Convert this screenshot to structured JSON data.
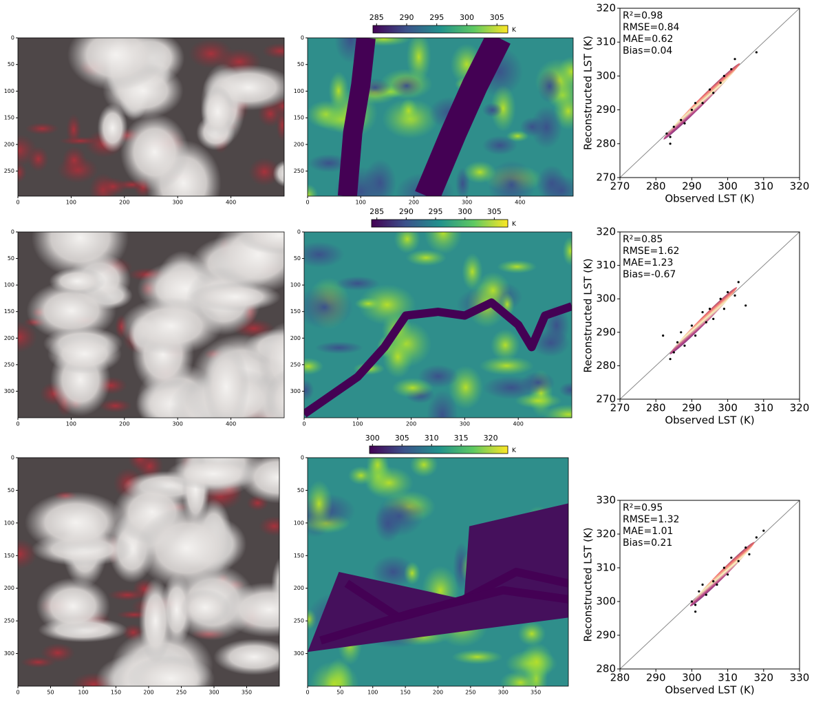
{
  "chart_data": [
    {
      "type": "image",
      "xlim": [
        0,
        500
      ],
      "ylim": [
        0,
        297
      ],
      "xticks": [
        0,
        100,
        200,
        300,
        400
      ],
      "yticks": [
        0,
        50,
        100,
        150,
        200,
        250
      ],
      "style": "rgb"
    },
    {
      "type": "image",
      "xlim": [
        0,
        500
      ],
      "ylim": [
        0,
        297
      ],
      "xticks": [
        0,
        100,
        200,
        300,
        400
      ],
      "yticks": [
        0,
        50,
        100,
        150,
        200,
        250
      ],
      "style": "lst",
      "colorbar": {
        "lim": [
          284.4,
          306.8
        ],
        "ticks": [
          285,
          290,
          295,
          300,
          305
        ],
        "label": "K"
      }
    },
    {
      "type": "scatter",
      "xlabel": "Observed LST (K)",
      "ylabel": "Reconstructed LST (K)",
      "xlim": [
        270,
        320
      ],
      "ylim": [
        270,
        320
      ],
      "xticks": [
        270,
        280,
        290,
        300,
        310,
        320
      ],
      "yticks": [
        270,
        280,
        290,
        300,
        310,
        320
      ],
      "color": "#000000",
      "annotations": [
        "R²=0.98",
        "RMSE=0.84",
        "MAE=0.62",
        "Bias=0.04"
      ],
      "x": [
        283,
        284,
        285,
        287,
        288,
        290,
        291,
        293,
        295,
        296,
        298,
        299,
        301,
        284,
        308,
        302
      ],
      "y": [
        283,
        282,
        285,
        287,
        286,
        290,
        292,
        292,
        296,
        295,
        298,
        300,
        302,
        280,
        307,
        305
      ]
    },
    {
      "type": "image",
      "xlim": [
        0,
        500
      ],
      "ylim": [
        0,
        350
      ],
      "xticks": [
        0,
        100,
        200,
        300,
        400
      ],
      "yticks": [
        0,
        50,
        100,
        150,
        200,
        250,
        300
      ],
      "style": "rgb"
    },
    {
      "type": "image",
      "xlim": [
        0,
        500
      ],
      "ylim": [
        0,
        350
      ],
      "xticks": [
        0,
        100,
        200,
        300,
        400
      ],
      "yticks": [
        0,
        50,
        100,
        150,
        200,
        250,
        300
      ],
      "style": "lst",
      "colorbar": {
        "lim": [
          284.1,
          307.3
        ],
        "ticks": [
          285,
          290,
          295,
          300,
          305
        ],
        "label": "K"
      }
    },
    {
      "type": "scatter",
      "xlabel": "Observed LST (K)",
      "ylabel": "Reconstructed LST (K)",
      "xlim": [
        270,
        320
      ],
      "ylim": [
        270,
        320
      ],
      "xticks": [
        270,
        280,
        290,
        300,
        310,
        320
      ],
      "yticks": [
        270,
        280,
        290,
        300,
        310,
        320
      ],
      "color": "#000000",
      "annotations": [
        "R²=0.85",
        "RMSE=1.62",
        "MAE=1.23",
        "Bias=-0.67"
      ],
      "x": [
        286,
        287,
        288,
        290,
        291,
        293,
        294,
        295,
        296,
        298,
        299,
        300,
        302,
        303,
        285,
        284,
        305,
        282
      ],
      "y": [
        287,
        290,
        286,
        292,
        289,
        296,
        293,
        297,
        294,
        300,
        297,
        302,
        301,
        305,
        284,
        282,
        298,
        289
      ]
    },
    {
      "type": "image",
      "xlim": [
        0,
        400
      ],
      "ylim": [
        0,
        350
      ],
      "xticks": [
        0,
        50,
        100,
        150,
        200,
        250,
        300,
        350
      ],
      "yticks": [
        0,
        50,
        100,
        150,
        200,
        250,
        300
      ],
      "style": "rgb"
    },
    {
      "type": "image",
      "xlim": [
        0,
        400
      ],
      "ylim": [
        0,
        350
      ],
      "xticks": [
        0,
        50,
        100,
        150,
        200,
        250,
        300,
        350
      ],
      "yticks": [
        0,
        50,
        100,
        150,
        200,
        250,
        300
      ],
      "style": "lst",
      "colorbar": {
        "lim": [
          299.5,
          322.9
        ],
        "ticks": [
          300,
          305,
          310,
          315,
          320
        ],
        "label": "K"
      }
    },
    {
      "type": "scatter",
      "xlabel": "Observed LST (K)",
      "ylabel": "Reconstructed LST (K)",
      "xlim": [
        280,
        330
      ],
      "ylim": [
        280,
        330
      ],
      "xticks": [
        280,
        290,
        300,
        310,
        320,
        330
      ],
      "yticks": [
        280,
        290,
        300,
        310,
        320,
        330
      ],
      "color": "#000000",
      "annotations": [
        "R²=0.95",
        "RMSE=1.32",
        "MAE=1.01",
        "Bias=0.21"
      ],
      "x": [
        300,
        301,
        302,
        304,
        306,
        307,
        309,
        310,
        311,
        313,
        315,
        316,
        318,
        320,
        301,
        303
      ],
      "y": [
        300,
        299,
        303,
        302,
        306,
        305,
        310,
        308,
        313,
        312,
        316,
        314,
        319,
        321,
        297,
        305
      ]
    }
  ]
}
